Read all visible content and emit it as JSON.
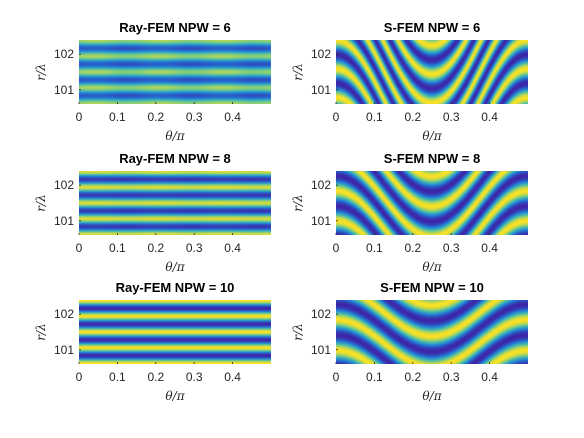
{
  "colors": {
    "low": "#3d26a8",
    "mid_low": "#1e7fd9",
    "mid": "#4fc2a6",
    "high": "#f9e224",
    "axis": "#262626",
    "background": "#ffffff"
  },
  "chart_data": [
    {
      "type": "heatmap",
      "title": "Ray-FEM NPW = 6",
      "xlabel": "θ/π",
      "ylabel": "r/λ",
      "xlim": [
        0,
        0.5
      ],
      "ylim": [
        100.6,
        102.4
      ],
      "xticks": [
        "0",
        "0.1",
        "0.2",
        "0.3",
        "0.4"
      ],
      "yticks": [
        "101",
        "102"
      ],
      "pattern": "horizontal-bands",
      "band_count": 4,
      "blur": 0.35,
      "colormap": "parula"
    },
    {
      "type": "heatmap",
      "title": "S-FEM NPW = 6",
      "xlabel": "θ/π",
      "ylabel": "r/λ",
      "xlim": [
        0,
        0.5
      ],
      "ylim": [
        100.6,
        102.4
      ],
      "xticks": [
        "0",
        "0.1",
        "0.2",
        "0.3",
        "0.4"
      ],
      "yticks": [
        "101",
        "102"
      ],
      "pattern": "arched-bands",
      "peak_theta": 0.25,
      "arch_height": 1.9,
      "band_count": 2.2,
      "colormap": "parula"
    },
    {
      "type": "heatmap",
      "title": "Ray-FEM NPW = 8",
      "xlabel": "θ/π",
      "ylabel": "r/λ",
      "xlim": [
        0,
        0.5
      ],
      "ylim": [
        100.6,
        102.4
      ],
      "xticks": [
        "0",
        "0.1",
        "0.2",
        "0.3",
        "0.4"
      ],
      "yticks": [
        "101",
        "102"
      ],
      "pattern": "horizontal-bands",
      "band_count": 4,
      "blur": 0.12,
      "colormap": "parula"
    },
    {
      "type": "heatmap",
      "title": "S-FEM NPW = 8",
      "xlabel": "θ/π",
      "ylabel": "r/λ",
      "xlim": [
        0,
        0.5
      ],
      "ylim": [
        100.6,
        102.4
      ],
      "xticks": [
        "0",
        "0.1",
        "0.2",
        "0.3",
        "0.4"
      ],
      "yticks": [
        "101",
        "102"
      ],
      "pattern": "arched-bands",
      "peak_theta": 0.25,
      "arch_height": 1.2,
      "band_count": 2.1,
      "colormap": "parula"
    },
    {
      "type": "heatmap",
      "title": "Ray-FEM NPW = 10",
      "xlabel": "θ/π",
      "ylabel": "r/λ",
      "xlim": [
        0,
        0.5
      ],
      "ylim": [
        100.6,
        102.4
      ],
      "xticks": [
        "0",
        "0.1",
        "0.2",
        "0.3",
        "0.4"
      ],
      "yticks": [
        "101",
        "102"
      ],
      "pattern": "horizontal-bands",
      "band_count": 4,
      "blur": 0.0,
      "colormap": "parula"
    },
    {
      "type": "heatmap",
      "title": "S-FEM NPW = 10",
      "xlabel": "θ/π",
      "ylabel": "r/λ",
      "xlim": [
        0,
        0.5
      ],
      "ylim": [
        100.6,
        102.4
      ],
      "xticks": [
        "0",
        "0.1",
        "0.2",
        "0.3",
        "0.4"
      ],
      "yticks": [
        "101",
        "102"
      ],
      "pattern": "arched-bands",
      "peak_theta": 0.25,
      "arch_height": 0.75,
      "band_count": 2.05,
      "colormap": "parula"
    }
  ]
}
